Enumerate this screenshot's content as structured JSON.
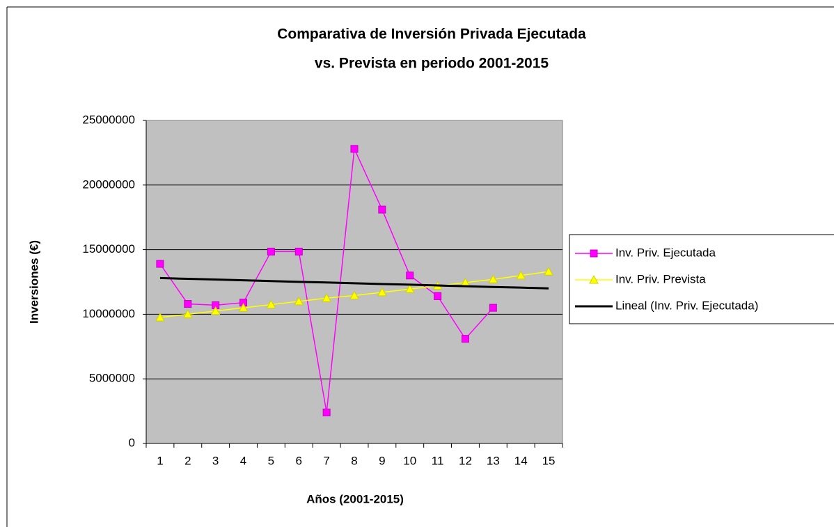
{
  "chart_data": {
    "type": "line",
    "title": "Comparativa de Inversión Privada Ejecutada",
    "subtitle": "vs. Prevista  en periodo 2001-2015",
    "x_label": "Años (2001-2015)",
    "y_label": "Inversiones (€)",
    "categories": [
      "1",
      "2",
      "3",
      "4",
      "5",
      "6",
      "7",
      "8",
      "9",
      "10",
      "11",
      "12",
      "13",
      "14",
      "15"
    ],
    "series": [
      {
        "name": "Inv. Priv. Ejecutada",
        "color": "#ff00ff",
        "marker": "square",
        "values": [
          13900000,
          10800000,
          10700000,
          10900000,
          14850000,
          14850000,
          2400000,
          22800000,
          18100000,
          13000000,
          11400000,
          8100000,
          10500000,
          null,
          null
        ]
      },
      {
        "name": "Inv. Priv. Prevista",
        "color": "#ffff00",
        "marker": "triangle",
        "values": [
          9750000,
          10000000,
          10250000,
          10500000,
          10750000,
          11000000,
          11250000,
          11450000,
          11700000,
          11950000,
          12200000,
          12450000,
          12700000,
          13000000,
          13300000
        ]
      },
      {
        "name": "Lineal (Inv. Priv. Ejecutada)",
        "color": "#000000",
        "marker": "none",
        "values": [
          12800000,
          12740000,
          12690000,
          12630000,
          12570000,
          12510000,
          12460000,
          12400000,
          12340000,
          12290000,
          12230000,
          12170000,
          12110000,
          12060000,
          12000000
        ]
      }
    ],
    "ylim": [
      0,
      25000000
    ],
    "yticks": [
      0,
      5000000,
      10000000,
      15000000,
      20000000,
      25000000
    ],
    "grid": true,
    "legend": "right"
  }
}
